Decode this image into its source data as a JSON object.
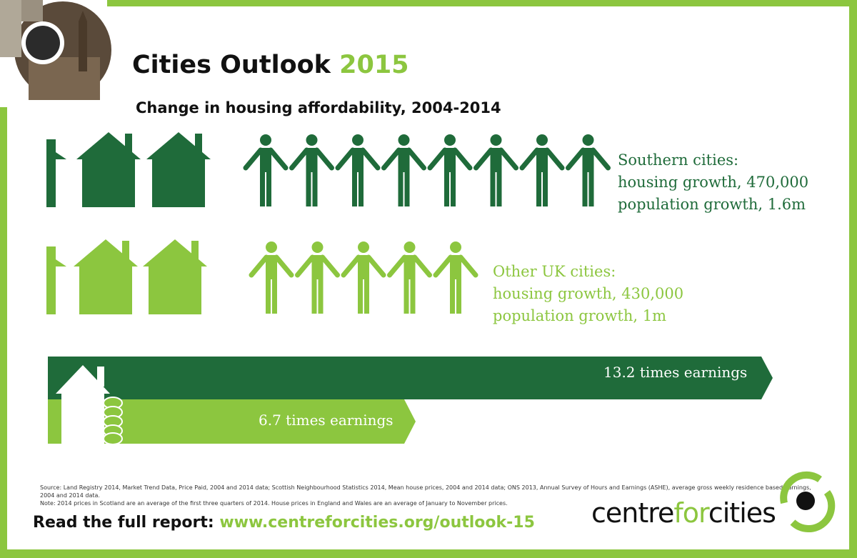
{
  "header": {
    "title_main": "Cities Outlook",
    "title_year": "2015",
    "subtitle": "Change in housing affordability, 2004-2014"
  },
  "southern": {
    "label_line1": "Southern cities:",
    "label_line2": "housing growth, 470,000",
    "label_line3": "population growth, 1.6m",
    "houses": 2.3,
    "people": 8,
    "color": "#1f6b3a"
  },
  "other": {
    "label_line1": "Other UK cities:",
    "label_line2": "housing growth, 430,000",
    "label_line3": "population growth, 1m",
    "houses": 2.3,
    "people": 5,
    "color": "#8cc63f"
  },
  "affordability": {
    "southern_text": "13.2 times earnings",
    "southern_value": 13.2,
    "other_text": "6.7 times earnings",
    "other_value": 6.7
  },
  "footer": {
    "source_line1": "Source: Land Registry 2014, Market Trend Data, Price Paid, 2004 and 2014 data; Scottish Neighbourhood Statistics 2014, Mean house prices, 2004 and 2014 data; ONS 2013, Annual Survey of Hours and Earnings (ASHE), average gross weekly residence based earnings, 2004 and 2014 data.",
    "source_line2": "Note: 2014 prices in Scotland are an average of the first three quarters of 2014. House prices in England and Wales are an average of January to November prices.",
    "cta_label": "Read the full report:",
    "cta_url": "www.centreforcities.org/outlook-15",
    "logo_part1": "centre",
    "logo_part2": "for",
    "logo_part3": "cities"
  },
  "colors": {
    "border": "#8cc63f",
    "dark_green": "#1f6b3a",
    "light_green": "#8cc63f"
  },
  "icons": [
    "house-icon",
    "person-icon",
    "coin-stack-icon",
    "city-photo-badge",
    "logo-mark-icon"
  ]
}
